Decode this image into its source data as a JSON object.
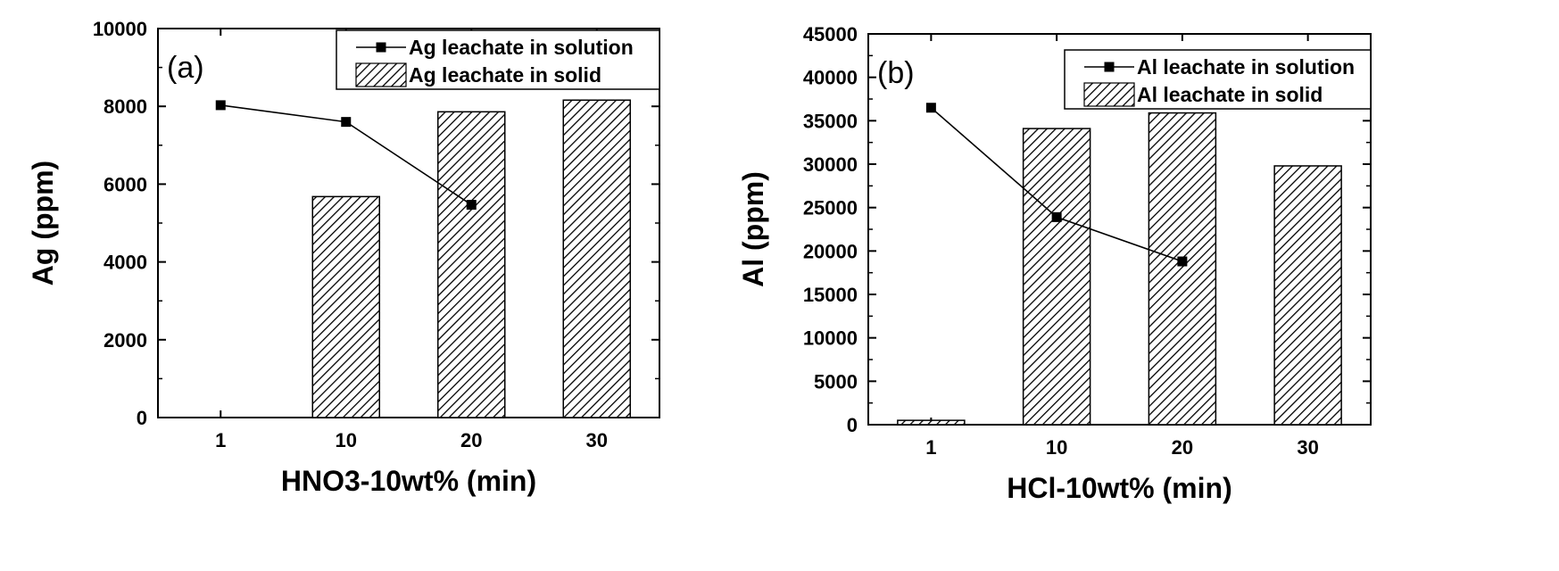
{
  "chart_data": [
    {
      "type": "bar",
      "panel_label": "(a)",
      "categories": [
        "1",
        "10",
        "20",
        "30"
      ],
      "xlabel": "HNO3-10wt% (min)",
      "ylabel": "Ag (ppm)",
      "ylim": [
        0,
        10000
      ],
      "yticks": [
        "0",
        "2000",
        "4000",
        "6000",
        "8000",
        "10000"
      ],
      "legend_position": "top-right",
      "series": [
        {
          "name": "Ag leachate in solution",
          "kind": "line",
          "values": [
            8030,
            7600,
            5470,
            null
          ]
        },
        {
          "name": "Ag leachate in solid",
          "kind": "bar",
          "values": [
            0,
            5680,
            7860,
            8160
          ]
        }
      ]
    },
    {
      "type": "bar",
      "panel_label": "(b)",
      "categories": [
        "1",
        "10",
        "20",
        "30"
      ],
      "xlabel": "HCl-10wt% (min)",
      "ylabel": "Al (ppm)",
      "ylim": [
        0,
        45000
      ],
      "yticks": [
        "0",
        "5000",
        "10000",
        "15000",
        "20000",
        "25000",
        "30000",
        "35000",
        "40000",
        "45000"
      ],
      "legend_position": "top-right",
      "series": [
        {
          "name": "Al leachate in solution",
          "kind": "line",
          "values": [
            36500,
            23900,
            18800,
            null
          ]
        },
        {
          "name": "Al leachate in solid",
          "kind": "bar",
          "values": [
            500,
            34100,
            35900,
            29800
          ]
        }
      ]
    }
  ]
}
